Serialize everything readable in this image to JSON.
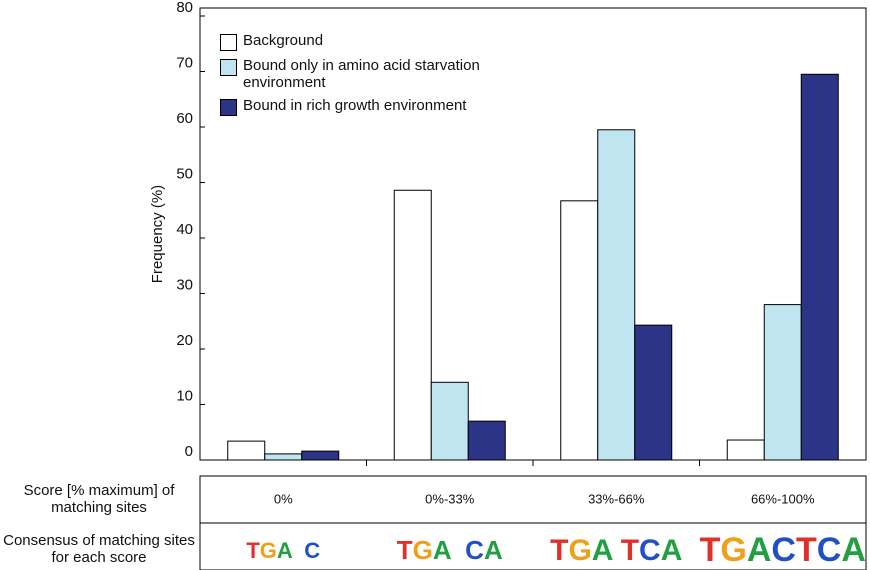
{
  "chart_data": {
    "type": "bar",
    "y_label": "Frequency (%)",
    "categories": [
      "0%",
      "0%-33%",
      "33%-66%",
      "66%-100%"
    ],
    "series": [
      {
        "name": "Background",
        "color": "#ffffff",
        "values": [
          3.4,
          48.6,
          46.7,
          3.6
        ]
      },
      {
        "name": "Bound only in amino acid starvation environment",
        "color": "#bfe5f0",
        "values": [
          1.1,
          14,
          59.5,
          28
        ]
      },
      {
        "name": "Bound in rich growth environment",
        "color": "#2b3486",
        "values": [
          1.6,
          7,
          24.3,
          69.5
        ]
      }
    ],
    "ylim": [
      0,
      80
    ],
    "yticks": [
      0,
      10,
      20,
      30,
      40,
      50,
      60,
      70,
      80
    ],
    "grid": false,
    "legend_position": "upper-left",
    "row_labels": [
      "Score [% maximum] of matching sites",
      "Consensus of matching sites for each score"
    ],
    "logos": [
      "TGA  C",
      "TGA  CA",
      "TGA TCA",
      "TGACTCA"
    ]
  }
}
